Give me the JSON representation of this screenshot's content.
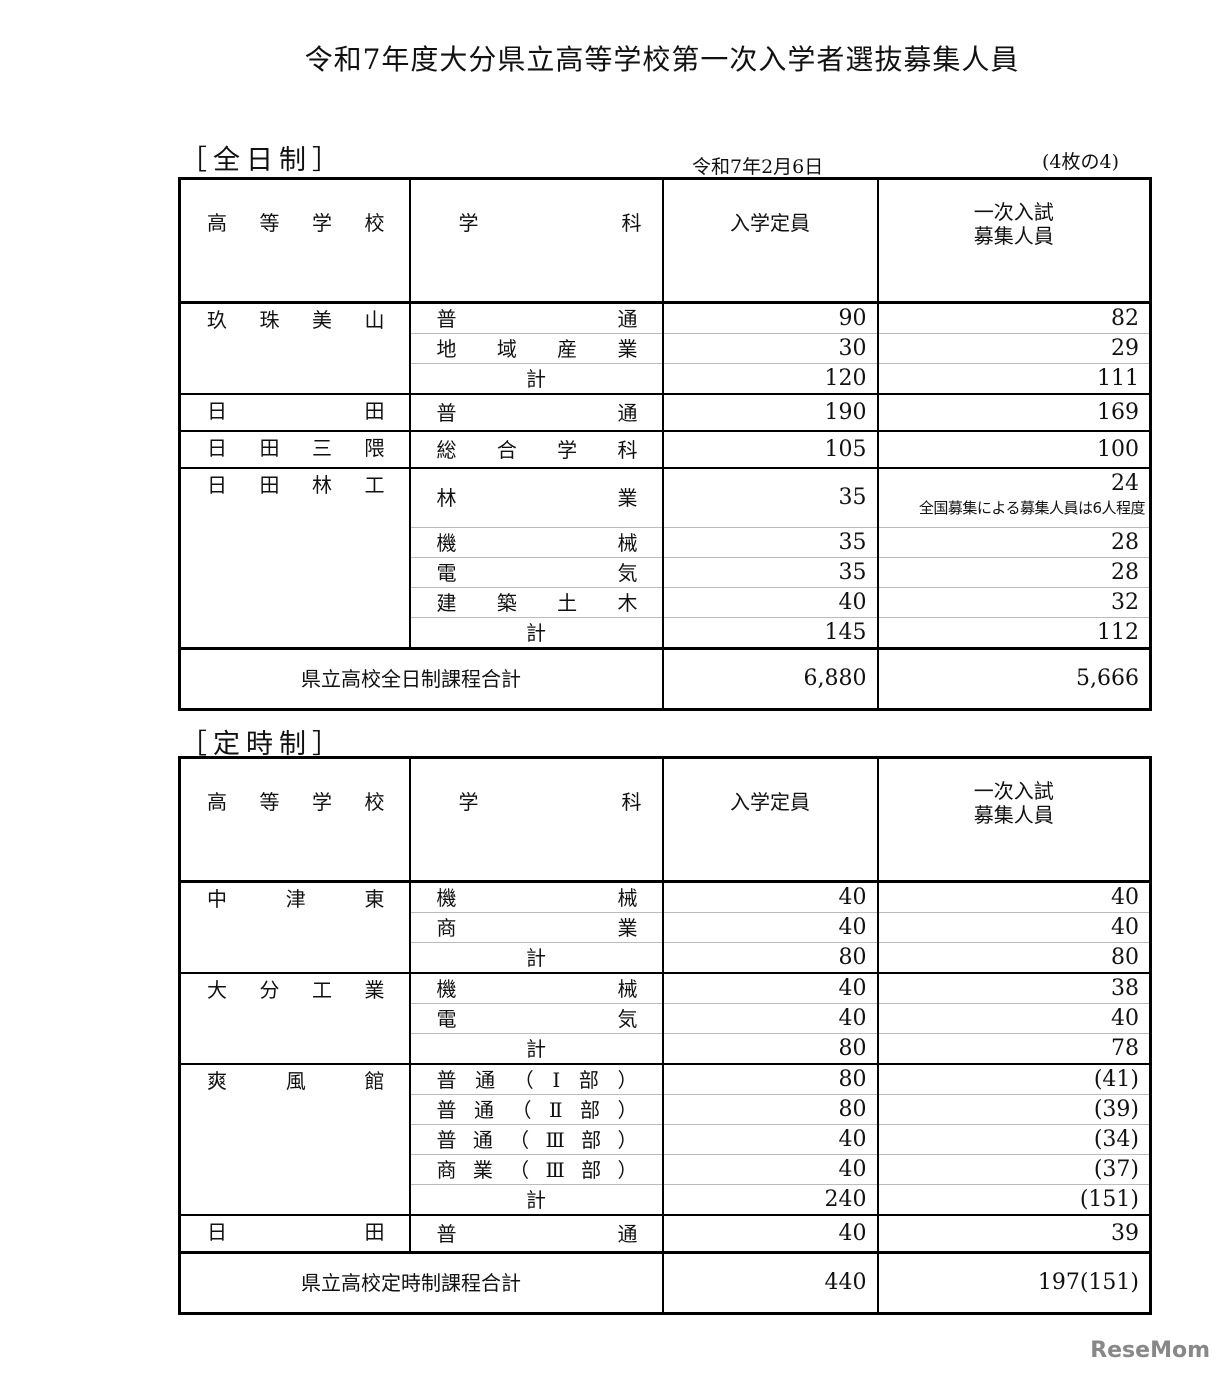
{
  "title": "令和7年度大分県立高等学校第一次入学者選抜募集人員",
  "date": "令和7年2月6日",
  "page": "(4枚の4)",
  "headers": {
    "school": "高等学校",
    "dept": "学科",
    "capacity": "入学定員",
    "recruit1": "一次入試",
    "recruit2": "募集人員"
  },
  "subtotal_label": "計",
  "sections": [
    {
      "label": "［全日制］",
      "total_label": "県立高校全日制課程合計",
      "total_capacity": "6,880",
      "total_recruit": "5,666",
      "schools": [
        {
          "name": "玖珠美山",
          "rows": [
            {
              "dept": "普通",
              "capacity": "90",
              "recruit": "82"
            },
            {
              "dept": "地域産業",
              "capacity": "30",
              "recruit": "29"
            }
          ],
          "subtotal": {
            "capacity": "120",
            "recruit": "111"
          }
        },
        {
          "name": "日田",
          "rows": [
            {
              "dept": "普通",
              "capacity": "190",
              "recruit": "169"
            }
          ]
        },
        {
          "name": "日田三隈",
          "rows": [
            {
              "dept": "総合学科",
              "capacity": "105",
              "recruit": "100"
            }
          ]
        },
        {
          "name": "日田林工",
          "rows": [
            {
              "dept": "林業",
              "capacity": "35",
              "recruit": "24",
              "note": "全国募集による募集人員は6人程度"
            },
            {
              "dept": "機械",
              "capacity": "35",
              "recruit": "28"
            },
            {
              "dept": "電気",
              "capacity": "35",
              "recruit": "28"
            },
            {
              "dept": "建築土木",
              "capacity": "40",
              "recruit": "32"
            }
          ],
          "subtotal": {
            "capacity": "145",
            "recruit": "112"
          }
        }
      ]
    },
    {
      "label": "［定時制］",
      "total_label": "県立高校定時制課程合計",
      "total_capacity": "440",
      "total_recruit": "197(151)",
      "schools": [
        {
          "name": "中津東",
          "rows": [
            {
              "dept": "機械",
              "capacity": "40",
              "recruit": "40"
            },
            {
              "dept": "商業",
              "capacity": "40",
              "recruit": "40"
            }
          ],
          "subtotal": {
            "capacity": "80",
            "recruit": "80"
          }
        },
        {
          "name": "大分工業",
          "rows": [
            {
              "dept": "機械",
              "capacity": "40",
              "recruit": "38"
            },
            {
              "dept": "電気",
              "capacity": "40",
              "recruit": "40"
            }
          ],
          "subtotal": {
            "capacity": "80",
            "recruit": "78"
          }
        },
        {
          "name": "爽風館",
          "rows": [
            {
              "dept": "普通（Ⅰ部）",
              "capacity": "80",
              "recruit": "(41)"
            },
            {
              "dept": "普通（Ⅱ部）",
              "capacity": "80",
              "recruit": "(39)"
            },
            {
              "dept": "普通（Ⅲ部）",
              "capacity": "40",
              "recruit": "(34)"
            },
            {
              "dept": "商業（Ⅲ部）",
              "capacity": "40",
              "recruit": "(37)"
            }
          ],
          "subtotal": {
            "capacity": "240",
            "recruit": "(151)"
          }
        },
        {
          "name": "日田",
          "rows": [
            {
              "dept": "普通",
              "capacity": "40",
              "recruit": "39"
            }
          ]
        }
      ]
    }
  ],
  "watermark": "ReseMom"
}
